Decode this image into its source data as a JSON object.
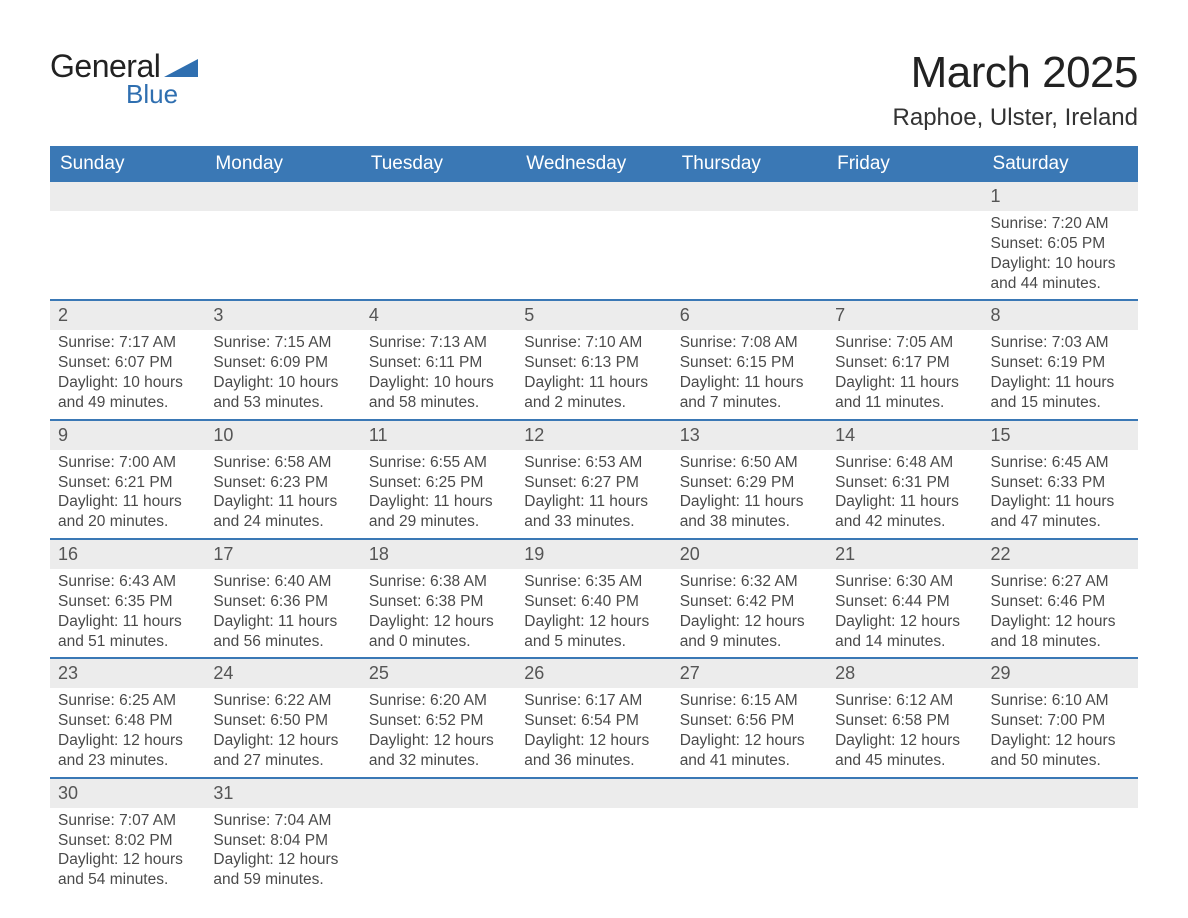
{
  "brand": {
    "general": "General",
    "blue": "Blue",
    "tri_color": "#2f6fb0"
  },
  "header": {
    "month": "March 2025",
    "location": "Raphoe, Ulster, Ireland"
  },
  "colors": {
    "header_bg": "#3a78b5",
    "header_text": "#ffffff",
    "row_divider": "#3a78b5",
    "daynum_bg": "#ececec",
    "body_text": "#4a4a4a",
    "background": "#ffffff"
  },
  "typography": {
    "month_fontsize": 44,
    "location_fontsize": 24,
    "dayheader_fontsize": 19,
    "cell_fontsize": 15.5,
    "daynum_fontsize": 18
  },
  "calendar": {
    "type": "table",
    "columns": [
      "Sunday",
      "Monday",
      "Tuesday",
      "Wednesday",
      "Thursday",
      "Friday",
      "Saturday"
    ],
    "weeks": [
      [
        null,
        null,
        null,
        null,
        null,
        null,
        {
          "n": "1",
          "sunrise": "Sunrise: 7:20 AM",
          "sunset": "Sunset: 6:05 PM",
          "day_a": "Daylight: 10 hours",
          "day_b": "and 44 minutes."
        }
      ],
      [
        {
          "n": "2",
          "sunrise": "Sunrise: 7:17 AM",
          "sunset": "Sunset: 6:07 PM",
          "day_a": "Daylight: 10 hours",
          "day_b": "and 49 minutes."
        },
        {
          "n": "3",
          "sunrise": "Sunrise: 7:15 AM",
          "sunset": "Sunset: 6:09 PM",
          "day_a": "Daylight: 10 hours",
          "day_b": "and 53 minutes."
        },
        {
          "n": "4",
          "sunrise": "Sunrise: 7:13 AM",
          "sunset": "Sunset: 6:11 PM",
          "day_a": "Daylight: 10 hours",
          "day_b": "and 58 minutes."
        },
        {
          "n": "5",
          "sunrise": "Sunrise: 7:10 AM",
          "sunset": "Sunset: 6:13 PM",
          "day_a": "Daylight: 11 hours",
          "day_b": "and 2 minutes."
        },
        {
          "n": "6",
          "sunrise": "Sunrise: 7:08 AM",
          "sunset": "Sunset: 6:15 PM",
          "day_a": "Daylight: 11 hours",
          "day_b": "and 7 minutes."
        },
        {
          "n": "7",
          "sunrise": "Sunrise: 7:05 AM",
          "sunset": "Sunset: 6:17 PM",
          "day_a": "Daylight: 11 hours",
          "day_b": "and 11 minutes."
        },
        {
          "n": "8",
          "sunrise": "Sunrise: 7:03 AM",
          "sunset": "Sunset: 6:19 PM",
          "day_a": "Daylight: 11 hours",
          "day_b": "and 15 minutes."
        }
      ],
      [
        {
          "n": "9",
          "sunrise": "Sunrise: 7:00 AM",
          "sunset": "Sunset: 6:21 PM",
          "day_a": "Daylight: 11 hours",
          "day_b": "and 20 minutes."
        },
        {
          "n": "10",
          "sunrise": "Sunrise: 6:58 AM",
          "sunset": "Sunset: 6:23 PM",
          "day_a": "Daylight: 11 hours",
          "day_b": "and 24 minutes."
        },
        {
          "n": "11",
          "sunrise": "Sunrise: 6:55 AM",
          "sunset": "Sunset: 6:25 PM",
          "day_a": "Daylight: 11 hours",
          "day_b": "and 29 minutes."
        },
        {
          "n": "12",
          "sunrise": "Sunrise: 6:53 AM",
          "sunset": "Sunset: 6:27 PM",
          "day_a": "Daylight: 11 hours",
          "day_b": "and 33 minutes."
        },
        {
          "n": "13",
          "sunrise": "Sunrise: 6:50 AM",
          "sunset": "Sunset: 6:29 PM",
          "day_a": "Daylight: 11 hours",
          "day_b": "and 38 minutes."
        },
        {
          "n": "14",
          "sunrise": "Sunrise: 6:48 AM",
          "sunset": "Sunset: 6:31 PM",
          "day_a": "Daylight: 11 hours",
          "day_b": "and 42 minutes."
        },
        {
          "n": "15",
          "sunrise": "Sunrise: 6:45 AM",
          "sunset": "Sunset: 6:33 PM",
          "day_a": "Daylight: 11 hours",
          "day_b": "and 47 minutes."
        }
      ],
      [
        {
          "n": "16",
          "sunrise": "Sunrise: 6:43 AM",
          "sunset": "Sunset: 6:35 PM",
          "day_a": "Daylight: 11 hours",
          "day_b": "and 51 minutes."
        },
        {
          "n": "17",
          "sunrise": "Sunrise: 6:40 AM",
          "sunset": "Sunset: 6:36 PM",
          "day_a": "Daylight: 11 hours",
          "day_b": "and 56 minutes."
        },
        {
          "n": "18",
          "sunrise": "Sunrise: 6:38 AM",
          "sunset": "Sunset: 6:38 PM",
          "day_a": "Daylight: 12 hours",
          "day_b": "and 0 minutes."
        },
        {
          "n": "19",
          "sunrise": "Sunrise: 6:35 AM",
          "sunset": "Sunset: 6:40 PM",
          "day_a": "Daylight: 12 hours",
          "day_b": "and 5 minutes."
        },
        {
          "n": "20",
          "sunrise": "Sunrise: 6:32 AM",
          "sunset": "Sunset: 6:42 PM",
          "day_a": "Daylight: 12 hours",
          "day_b": "and 9 minutes."
        },
        {
          "n": "21",
          "sunrise": "Sunrise: 6:30 AM",
          "sunset": "Sunset: 6:44 PM",
          "day_a": "Daylight: 12 hours",
          "day_b": "and 14 minutes."
        },
        {
          "n": "22",
          "sunrise": "Sunrise: 6:27 AM",
          "sunset": "Sunset: 6:46 PM",
          "day_a": "Daylight: 12 hours",
          "day_b": "and 18 minutes."
        }
      ],
      [
        {
          "n": "23",
          "sunrise": "Sunrise: 6:25 AM",
          "sunset": "Sunset: 6:48 PM",
          "day_a": "Daylight: 12 hours",
          "day_b": "and 23 minutes."
        },
        {
          "n": "24",
          "sunrise": "Sunrise: 6:22 AM",
          "sunset": "Sunset: 6:50 PM",
          "day_a": "Daylight: 12 hours",
          "day_b": "and 27 minutes."
        },
        {
          "n": "25",
          "sunrise": "Sunrise: 6:20 AM",
          "sunset": "Sunset: 6:52 PM",
          "day_a": "Daylight: 12 hours",
          "day_b": "and 32 minutes."
        },
        {
          "n": "26",
          "sunrise": "Sunrise: 6:17 AM",
          "sunset": "Sunset: 6:54 PM",
          "day_a": "Daylight: 12 hours",
          "day_b": "and 36 minutes."
        },
        {
          "n": "27",
          "sunrise": "Sunrise: 6:15 AM",
          "sunset": "Sunset: 6:56 PM",
          "day_a": "Daylight: 12 hours",
          "day_b": "and 41 minutes."
        },
        {
          "n": "28",
          "sunrise": "Sunrise: 6:12 AM",
          "sunset": "Sunset: 6:58 PM",
          "day_a": "Daylight: 12 hours",
          "day_b": "and 45 minutes."
        },
        {
          "n": "29",
          "sunrise": "Sunrise: 6:10 AM",
          "sunset": "Sunset: 7:00 PM",
          "day_a": "Daylight: 12 hours",
          "day_b": "and 50 minutes."
        }
      ],
      [
        {
          "n": "30",
          "sunrise": "Sunrise: 7:07 AM",
          "sunset": "Sunset: 8:02 PM",
          "day_a": "Daylight: 12 hours",
          "day_b": "and 54 minutes."
        },
        {
          "n": "31",
          "sunrise": "Sunrise: 7:04 AM",
          "sunset": "Sunset: 8:04 PM",
          "day_a": "Daylight: 12 hours",
          "day_b": "and 59 minutes."
        },
        null,
        null,
        null,
        null,
        null
      ]
    ]
  }
}
